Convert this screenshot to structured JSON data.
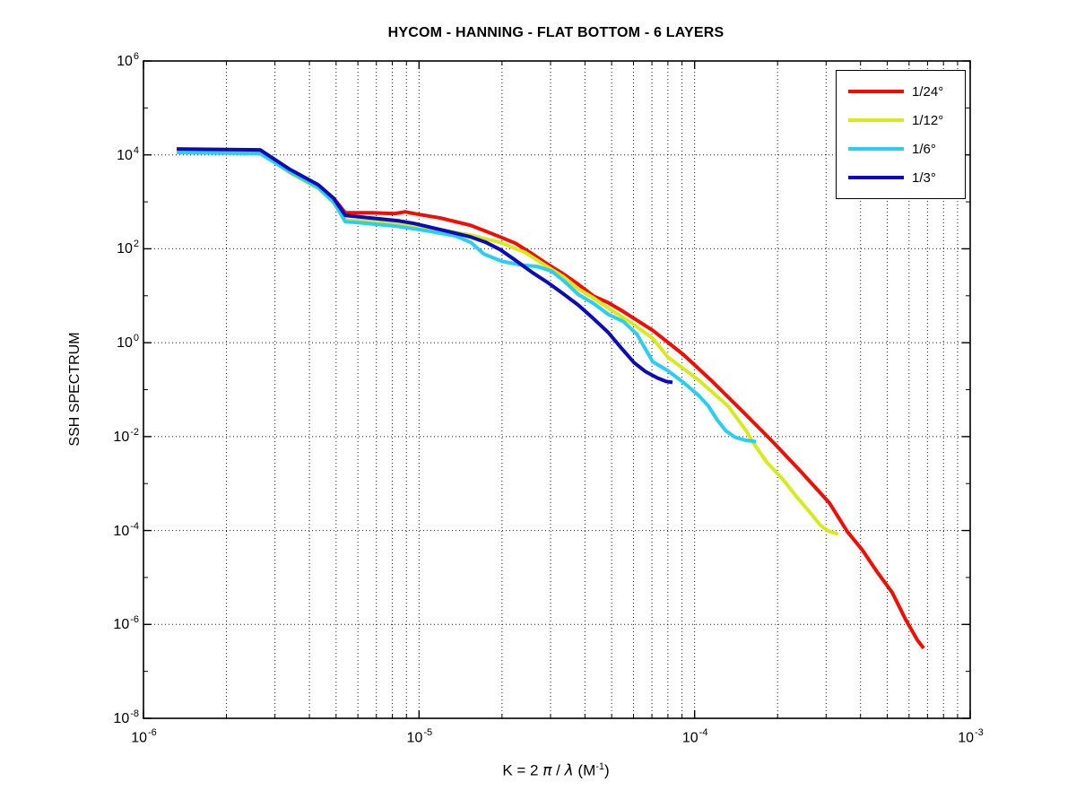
{
  "chart_data": {
    "type": "line",
    "title": "HYCOM - HANNING - FLAT BOTTOM - 6 LAYERS",
    "ylabel": "SSH SPECTRUM",
    "xlabel_text": "K = 2 π / λ  (M⁻¹)",
    "xlabel_parts": [
      {
        "t": "K = 2 "
      },
      {
        "t": "π",
        "greek": true
      },
      {
        "t": " / "
      },
      {
        "t": "λ",
        "greek": true
      },
      {
        "t": "  (M"
      },
      {
        "t": "-1",
        "sup": true
      },
      {
        "t": ")"
      }
    ],
    "x_scale": "log",
    "y_scale": "log",
    "xlim": [
      1e-06,
      0.001
    ],
    "ylim": [
      1e-08,
      1000000.0
    ],
    "x_tick_exponents": [
      -6,
      -5,
      -4,
      -3
    ],
    "y_tick_exponents": [
      6,
      4,
      2,
      0,
      -2,
      -4,
      -6,
      -8
    ],
    "grid": "dotted",
    "legend_position": "top-right",
    "frame_color": "#000000",
    "grid_color": "#000000",
    "series": [
      {
        "name": "1/24°",
        "color": "#f10d00",
        "points": [
          [
            1.32e-06,
            12800.0
          ],
          [
            2.65e-06,
            12200.0
          ],
          [
            3.37e-06,
            4850.0
          ],
          [
            4.31e-06,
            2200.0
          ],
          [
            4.9e-06,
            1190.0
          ],
          [
            5.4e-06,
            586.0
          ],
          [
            6.76e-06,
            586.0
          ],
          [
            8.15e-06,
            561.0
          ],
          [
            8.91e-06,
            612.0
          ],
          [
            9.61e-06,
            561.0
          ],
          [
            1.2e-05,
            450.0
          ],
          [
            1.54e-05,
            316.0
          ],
          [
            1.97e-05,
            179.0
          ],
          [
            2.24e-05,
            131.0
          ],
          [
            2.55e-05,
            80.7
          ],
          [
            2.85e-05,
            52.0
          ],
          [
            3.33e-05,
            29.3
          ],
          [
            3.79e-05,
            17.3
          ],
          [
            4.3e-05,
            9.8
          ],
          [
            4.85e-05,
            7.16
          ],
          [
            5.51e-05,
            4.61
          ],
          [
            7.05e-05,
            1.83
          ],
          [
            9.1e-05,
            0.557
          ],
          [
            0.000116,
            0.149
          ],
          [
            0.000149,
            0.0348
          ],
          [
            0.000192,
            0.0078
          ],
          [
            0.000246,
            0.00167
          ],
          [
            0.000308,
            0.00039
          ],
          [
            0.000358,
            9.53e-05
          ],
          [
            0.000407,
            3.78e-05
          ],
          [
            0.000459,
            1.32e-05
          ],
          [
            0.000521,
            4.78e-06
          ],
          [
            0.000583,
            1.27e-06
          ],
          [
            0.000643,
            4.63e-07
          ],
          [
            0.000678,
            3.11e-07
          ]
        ]
      },
      {
        "name": "1/12°",
        "color": "#d7ea1e",
        "points": [
          [
            1.32e-06,
            12200.0
          ],
          [
            2.65e-06,
            11700.0
          ],
          [
            3.37e-06,
            4260.0
          ],
          [
            4.31e-06,
            1920.0
          ],
          [
            4.9e-06,
            951.0
          ],
          [
            5.4e-06,
            412.0
          ],
          [
            6.76e-06,
            378.0
          ],
          [
            8.46e-06,
            346.0
          ],
          [
            9.61e-06,
            303.0
          ],
          [
            1.2e-05,
            254.0
          ],
          [
            1.54e-05,
            195.0
          ],
          [
            1.97e-05,
            137.0
          ],
          [
            2.42e-05,
            84.3
          ],
          [
            2.85e-05,
            45.5
          ],
          [
            3.33e-05,
            25.7
          ],
          [
            3.79e-05,
            13.9
          ],
          [
            4.3e-05,
            8.9
          ],
          [
            4.85e-05,
            5.5
          ],
          [
            5.93e-05,
            2.6
          ],
          [
            7.05e-05,
            1.23
          ],
          [
            8.01e-05,
            0.489
          ],
          [
            0.000103,
            0.163
          ],
          [
            0.000132,
            0.0454
          ],
          [
            0.000154,
            0.0132
          ],
          [
            0.000163,
            0.00744
          ],
          [
            0.000183,
            0.00283
          ],
          [
            0.000208,
            0.00128
          ],
          [
            0.000234,
            0.000531
          ],
          [
            0.000266,
            0.00022
          ],
          [
            0.000286,
            0.00013
          ],
          [
            0.000308,
            9.5e-05
          ],
          [
            0.000332,
            8.4e-05
          ]
        ]
      },
      {
        "name": "1/6°",
        "color": "#2ccdf4",
        "points": [
          [
            1.32e-06,
            11200.0
          ],
          [
            2.65e-06,
            10700.0
          ],
          [
            3.37e-06,
            4450.0
          ],
          [
            4.31e-06,
            2010.0
          ],
          [
            4.9e-06,
            992.0
          ],
          [
            5.4e-06,
            378.0
          ],
          [
            6.03e-06,
            361.0
          ],
          [
            8.27e-06,
            303.0
          ],
          [
            1.06e-05,
            243.0
          ],
          [
            1.36e-05,
            187.0
          ],
          [
            1.54e-05,
            137.0
          ],
          [
            1.72e-05,
            77.3
          ],
          [
            2e-05,
            54.2
          ],
          [
            2.33e-05,
            45.5
          ],
          [
            2.7e-05,
            41.7
          ],
          [
            3.03e-05,
            33.4
          ],
          [
            3.33e-05,
            21.5
          ],
          [
            3.79e-05,
            10.6
          ],
          [
            4.3e-05,
            6.85
          ],
          [
            4.85e-05,
            4.04
          ],
          [
            5.51e-05,
            2.84
          ],
          [
            6.17e-05,
            1.53
          ],
          [
            7.05e-05,
            0.392
          ],
          [
            8.01e-05,
            0.252
          ],
          [
            9.1e-05,
            0.143
          ],
          [
            0.000103,
            0.077
          ],
          [
            0.000112,
            0.0454
          ],
          [
            0.000121,
            0.0224
          ],
          [
            0.00013,
            0.0132
          ],
          [
            0.00014,
            0.00972
          ],
          [
            0.000151,
            0.00851
          ],
          [
            0.000167,
            0.0078
          ]
        ]
      },
      {
        "name": "1/3°",
        "color": "#0b0cb8",
        "points": [
          [
            1.32e-06,
            13400.0
          ],
          [
            2.65e-06,
            12800.0
          ],
          [
            3.37e-06,
            5070.0
          ],
          [
            4.31e-06,
            2300.0
          ],
          [
            4.9e-06,
            1190.0
          ],
          [
            5.4e-06,
            514.0
          ],
          [
            6.76e-06,
            450.0
          ],
          [
            8.46e-06,
            394.0
          ],
          [
            9.61e-06,
            346.0
          ],
          [
            1.2e-05,
            254.0
          ],
          [
            1.54e-05,
            179.0
          ],
          [
            1.75e-05,
            137.0
          ],
          [
            1.97e-05,
            96.2
          ],
          [
            2.24e-05,
            56.7
          ],
          [
            2.56e-05,
            32.0
          ],
          [
            2.91e-05,
            19.7
          ],
          [
            3.33e-05,
            11.1
          ],
          [
            3.79e-05,
            6.28
          ],
          [
            4.3e-05,
            3.24
          ],
          [
            4.85e-05,
            1.67
          ],
          [
            5.43e-05,
            0.759
          ],
          [
            6.03e-05,
            0.375
          ],
          [
            6.64e-05,
            0.242
          ],
          [
            7.32e-05,
            0.178
          ],
          [
            7.89e-05,
            0.149
          ],
          [
            8.31e-05,
            0.143
          ]
        ]
      }
    ]
  }
}
